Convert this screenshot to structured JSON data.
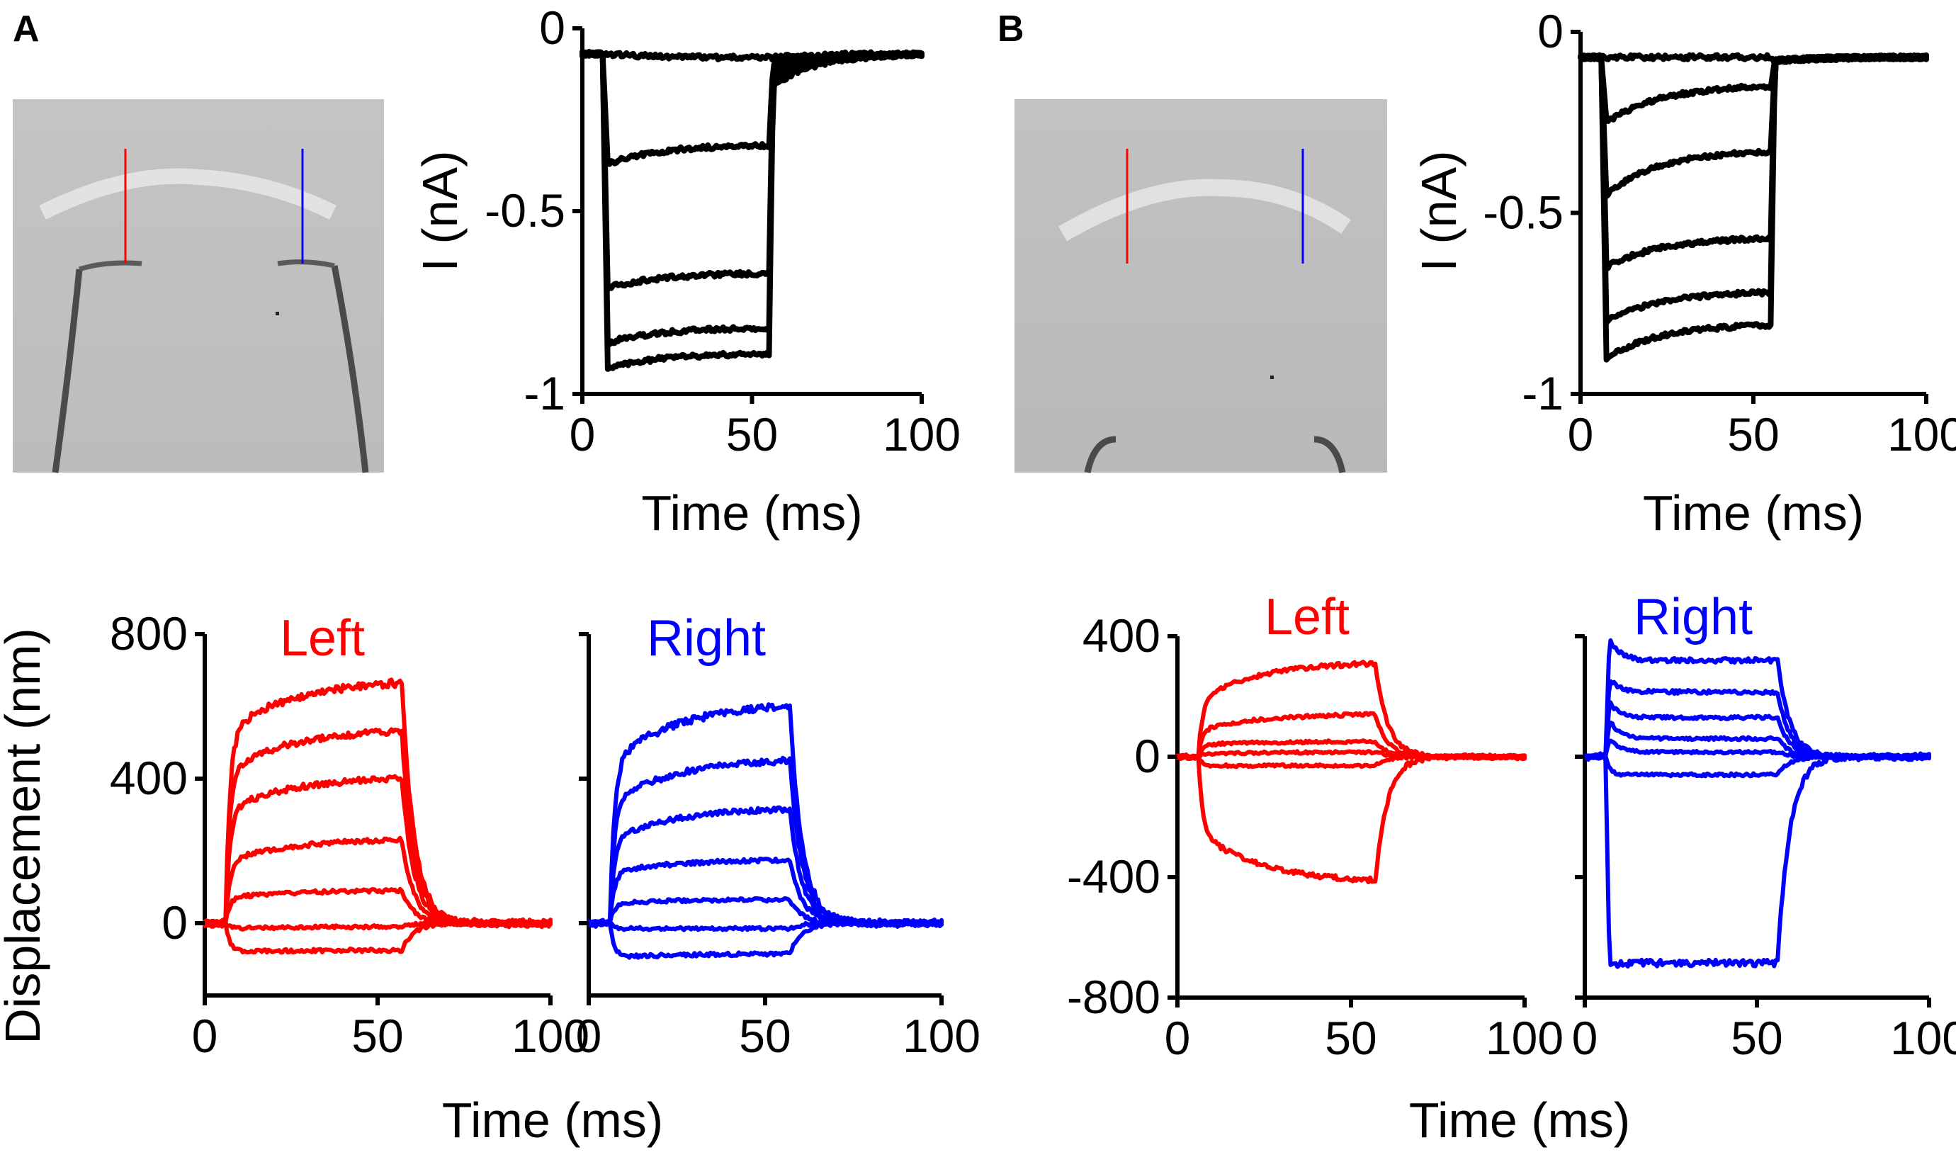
{
  "panel_labels": {
    "a": "A",
    "b": "B"
  },
  "colors": {
    "current": "#000000",
    "left": "#ff0000",
    "right": "#0000ff",
    "image_bg": "#bdbdbd"
  },
  "images": {
    "a": {
      "name": "micrograph-a",
      "description_icon": "hair-bundle-micrograph-icon"
    },
    "b": {
      "name": "micrograph-b",
      "description_icon": "hair-bundle-micrograph-icon"
    }
  },
  "chart_data": [
    {
      "id": "A-current",
      "type": "line",
      "title": "",
      "xlabel": "Time (ms)",
      "ylabel": "I (nA)",
      "xlim": [
        0,
        100
      ],
      "ylim": [
        -1,
        0
      ],
      "xticks": [
        0,
        50,
        100
      ],
      "xtick_labels": [
        "0",
        "50",
        "100"
      ],
      "yticks": [
        0,
        -0.5,
        -1
      ],
      "ytick_labels": [
        "0",
        "-0.5",
        "-1"
      ],
      "color": "#000000",
      "series": [
        {
          "name": "step-1",
          "baseline": -0.07,
          "peak": -0.07,
          "steady": -0.08,
          "tail": -0.08
        },
        {
          "name": "step-2",
          "baseline": -0.07,
          "peak": -0.37,
          "steady": -0.32,
          "tail": -0.1
        },
        {
          "name": "step-3",
          "baseline": -0.07,
          "peak": -0.71,
          "steady": -0.67,
          "tail": -0.12
        },
        {
          "name": "step-4",
          "baseline": -0.07,
          "peak": -0.86,
          "steady": -0.82,
          "tail": -0.14
        },
        {
          "name": "step-5",
          "baseline": -0.07,
          "peak": -0.93,
          "steady": -0.89,
          "tail": -0.16
        }
      ],
      "step_on": 6,
      "step_off": 55,
      "duration": 100
    },
    {
      "id": "B-current",
      "type": "line",
      "title": "",
      "xlabel": "Time (ms)",
      "ylabel": "I (nA)",
      "xlim": [
        0,
        100
      ],
      "ylim": [
        -1,
        0
      ],
      "xticks": [
        0,
        50,
        100
      ],
      "xtick_labels": [
        "0",
        "50",
        "100"
      ],
      "yticks": [
        0,
        -0.5,
        -1
      ],
      "ytick_labels": [
        "0",
        "-0.5",
        "-1"
      ],
      "color": "#000000",
      "series": [
        {
          "name": "step-1",
          "baseline": -0.07,
          "peak": -0.07,
          "steady": -0.07,
          "tail": -0.08
        },
        {
          "name": "step-2",
          "baseline": -0.07,
          "peak": -0.25,
          "steady": -0.15,
          "tail": -0.08
        },
        {
          "name": "step-3",
          "baseline": -0.07,
          "peak": -0.45,
          "steady": -0.33,
          "tail": -0.08
        },
        {
          "name": "step-4",
          "baseline": -0.07,
          "peak": -0.65,
          "steady": -0.57,
          "tail": -0.08
        },
        {
          "name": "step-5",
          "baseline": -0.07,
          "peak": -0.8,
          "steady": -0.72,
          "tail": -0.08
        },
        {
          "name": "step-6",
          "baseline": -0.07,
          "peak": -0.9,
          "steady": -0.81,
          "tail": -0.08
        }
      ],
      "step_on": 6,
      "step_off": 55,
      "duration": 100
    },
    {
      "id": "A-left",
      "type": "line",
      "title": "Left",
      "xlabel": "",
      "ylabel": "Displacement (nm)",
      "xlim": [
        0,
        100
      ],
      "ylim": [
        -200,
        800
      ],
      "xticks": [
        0,
        50,
        100
      ],
      "xtick_labels": [
        "0",
        "50",
        "100"
      ],
      "yticks": [
        0,
        400,
        800
      ],
      "ytick_labels": [
        "0",
        "400",
        "800"
      ],
      "color": "#ff0000",
      "series": [
        {
          "name": "step-1",
          "early": -15,
          "steady": -10
        },
        {
          "name": "step-2",
          "early": -80,
          "steady": -75
        },
        {
          "name": "step-3",
          "early": 70,
          "steady": 90
        },
        {
          "name": "step-4",
          "early": 170,
          "steady": 230
        },
        {
          "name": "step-5",
          "early": 310,
          "steady": 400
        },
        {
          "name": "step-6",
          "early": 420,
          "steady": 530
        },
        {
          "name": "step-7",
          "early": 520,
          "steady": 665
        }
      ],
      "step_on": 6,
      "step_off": 57,
      "duration": 100
    },
    {
      "id": "A-right",
      "type": "line",
      "title": "Right",
      "xlabel": "",
      "ylabel": "",
      "xlim": [
        0,
        100
      ],
      "ylim": [
        -200,
        800
      ],
      "xticks": [
        0,
        50,
        100
      ],
      "xtick_labels": [
        "0",
        "50",
        "100"
      ],
      "yticks": [
        0,
        400,
        800
      ],
      "ytick_labels": [
        "",
        "",
        ""
      ],
      "color": "#0000ff",
      "series": [
        {
          "name": "step-1",
          "early": -15,
          "steady": -15
        },
        {
          "name": "step-2",
          "early": -95,
          "steady": -85
        },
        {
          "name": "step-3",
          "early": 55,
          "steady": 65
        },
        {
          "name": "step-4",
          "early": 140,
          "steady": 175
        },
        {
          "name": "step-5",
          "early": 230,
          "steady": 315
        },
        {
          "name": "step-6",
          "early": 330,
          "steady": 450
        },
        {
          "name": "step-7",
          "early": 440,
          "steady": 600
        }
      ],
      "step_on": 6,
      "step_off": 57,
      "duration": 100
    },
    {
      "id": "B-left",
      "type": "line",
      "title": "Left",
      "xlabel": "",
      "ylabel": "",
      "xlim": [
        0,
        100
      ],
      "ylim": [
        -800,
        400
      ],
      "xticks": [
        0,
        50,
        100
      ],
      "xtick_labels": [
        "0",
        "50",
        "100"
      ],
      "yticks": [
        400,
        0,
        -400,
        -800
      ],
      "ytick_labels": [
        "400",
        "0",
        "-400",
        "-800"
      ],
      "color": "#ff0000",
      "series": [
        {
          "name": "step-1",
          "early": -30,
          "steady": -30
        },
        {
          "name": "step-2",
          "early": 10,
          "steady": 15
        },
        {
          "name": "step-3",
          "early": 40,
          "steady": 50
        },
        {
          "name": "step-4",
          "early": 90,
          "steady": 140
        },
        {
          "name": "step-5",
          "early": 190,
          "steady": 310
        },
        {
          "name": "step-6",
          "early": -250,
          "steady": -410
        }
      ],
      "step_on": 6,
      "step_off": 57,
      "duration": 100
    },
    {
      "id": "B-right",
      "type": "line",
      "title": "Right",
      "xlabel": "",
      "ylabel": "",
      "xlim": [
        0,
        100
      ],
      "ylim": [
        -800,
        400
      ],
      "xticks": [
        0,
        50,
        100
      ],
      "xtick_labels": [
        "0",
        "50",
        "100"
      ],
      "yticks": [
        400,
        0,
        -400,
        -800
      ],
      "ytick_labels": [
        "",
        "",
        "",
        ""
      ],
      "color": "#0000ff",
      "series": [
        {
          "name": "step-1",
          "early": -60,
          "steady": -60,
          "overshoot": 0
        },
        {
          "name": "step-2",
          "early": 40,
          "steady": 15,
          "overshoot": 60
        },
        {
          "name": "step-3",
          "early": 90,
          "steady": 60,
          "overshoot": 120
        },
        {
          "name": "step-4",
          "early": 170,
          "steady": 130,
          "overshoot": 180
        },
        {
          "name": "step-5",
          "early": 260,
          "steady": 215,
          "overshoot": 260
        },
        {
          "name": "step-6",
          "early": 340,
          "steady": 320,
          "overshoot": 390
        },
        {
          "name": "step-7",
          "early": -680,
          "steady": -685,
          "overshoot": -690
        }
      ],
      "step_on": 6,
      "step_off": 56,
      "duration": 100
    }
  ],
  "shared_labels": {
    "time_a": "Time (ms)",
    "time_b": "Time (ms)"
  }
}
